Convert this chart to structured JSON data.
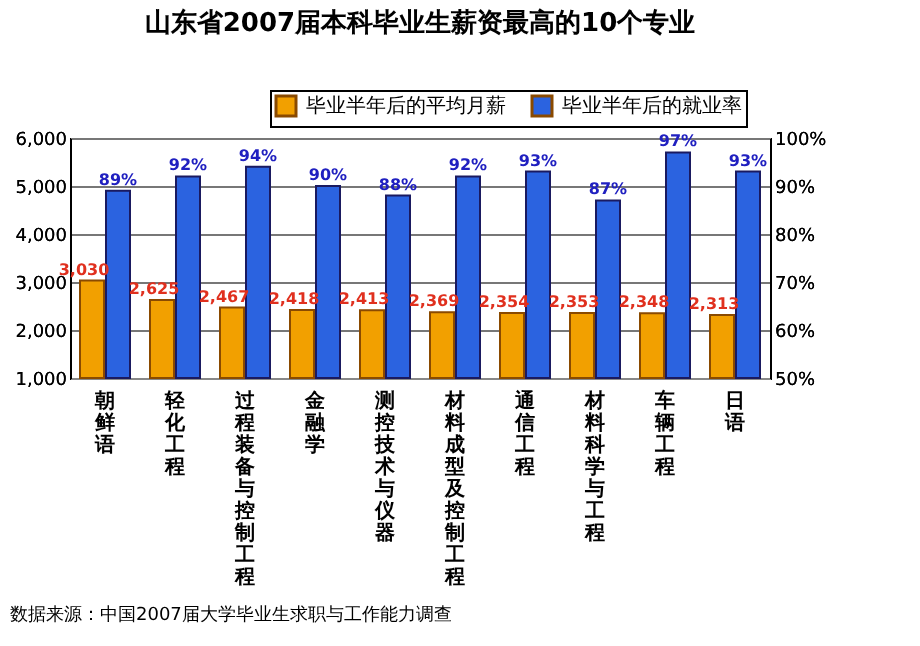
{
  "chart_data": {
    "type": "bar",
    "title": "山东省2007届本科毕业生薪资最高的10个专业",
    "categories": [
      "朝鲜语",
      "轻化工程",
      "过程装备与控制工程",
      "金融学",
      "测控技术与仪器",
      "材料成型及控制工程",
      "通信工程",
      "材料科学与工程",
      "车辆工程",
      "日语"
    ],
    "series": [
      {
        "name": "毕业半年后的平均月薪",
        "color": "#f2a000",
        "values": [
          3030,
          2625,
          2467,
          2418,
          2413,
          2369,
          2354,
          2353,
          2348,
          2313
        ],
        "value_labels": [
          "3,030",
          "2,625",
          "2,467",
          "2,418",
          "2,413",
          "2,369",
          "2,354",
          "2,353",
          "2,348",
          "2,313"
        ]
      },
      {
        "name": "毕业半年后的就业率",
        "color": "#2b63e0",
        "axis": "y2",
        "values": [
          89,
          92,
          94,
          90,
          88,
          92,
          93,
          87,
          97,
          93
        ],
        "value_labels": [
          "89%",
          "92%",
          "94%",
          "90%",
          "88%",
          "92%",
          "93%",
          "87%",
          "97%",
          "93%"
        ]
      }
    ],
    "ylim": [
      1000,
      6000
    ],
    "yticks": [
      {
        "value": 1000,
        "label": "1,000"
      },
      {
        "value": 2000,
        "label": "2,000"
      },
      {
        "value": 3000,
        "label": "3,000"
      },
      {
        "value": 4000,
        "label": "4,000"
      },
      {
        "value": 5000,
        "label": "5,000"
      },
      {
        "value": 6000,
        "label": "6,000"
      }
    ],
    "y2lim": [
      50,
      100
    ],
    "y2ticks": [
      {
        "value": 50,
        "label": "50%"
      },
      {
        "value": 60,
        "label": "60%"
      },
      {
        "value": 70,
        "label": "70%"
      },
      {
        "value": 80,
        "label": "80%"
      },
      {
        "value": 90,
        "label": "90%"
      },
      {
        "value": 100,
        "label": "100%"
      }
    ],
    "grid": "y",
    "legend": "top right",
    "annotations": [
      "数据来源：中国2007届大学毕业生求职与工作能力调查"
    ]
  }
}
